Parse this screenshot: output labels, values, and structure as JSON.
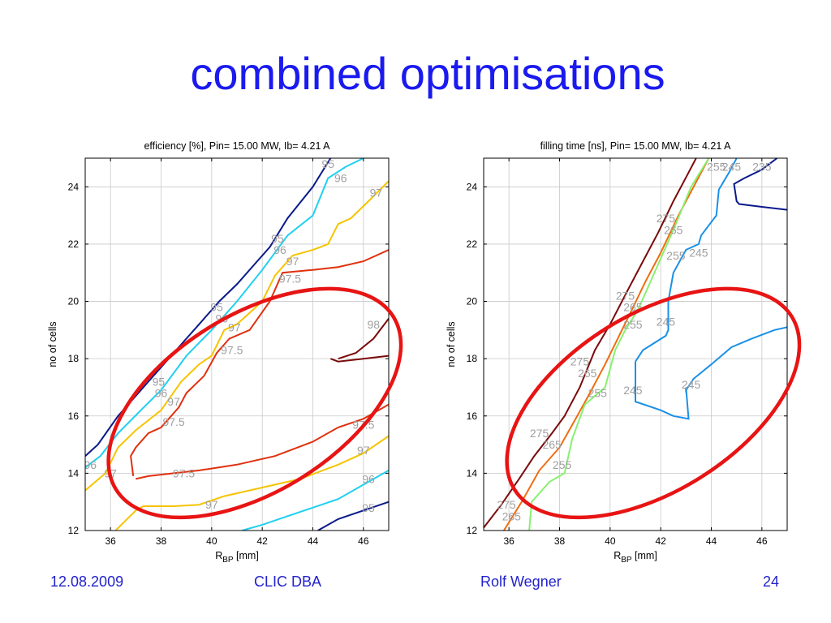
{
  "slide": {
    "title": "combined optimisations",
    "footer": {
      "date": "12.08.2009",
      "event": "CLIC DBA",
      "author": "Rolf Wegner",
      "page": "24"
    }
  },
  "colors": {
    "title": "#1a1af0",
    "footer": "#2222cc",
    "highlight": "#e81414",
    "contour_95": "#0a1a8a",
    "contour_96": "#1fd0f0",
    "contour_97": "#f5c400",
    "contour_97_5": "#e0300e",
    "contour_98": "#7a0a0a",
    "contour_275": "#7a0a0a",
    "contour_265": "#f06c10",
    "contour_255": "#88f070",
    "contour_245": "#1a90e8",
    "contour_235": "#0a1a8a",
    "label": "#a0a0a0"
  },
  "chart_data": [
    {
      "type": "contour",
      "title": "efficiency [%],  Pin= 15.00 MW,  Ib= 4.21 A",
      "xlabel": "R",
      "xlabel_sub": "BP",
      "xlabel_unit": " [mm]",
      "ylabel": "no of cells",
      "xlim": [
        35,
        47
      ],
      "ylim": [
        12,
        25
      ],
      "xticks": [
        36,
        38,
        40,
        42,
        44,
        46
      ],
      "yticks": [
        12,
        14,
        16,
        18,
        20,
        22,
        24
      ],
      "grid": true,
      "contours": [
        {
          "level": "95",
          "color": "#0a1a8a",
          "points": [
            [
              35,
              14.6
            ],
            [
              35.5,
              15
            ],
            [
              36.3,
              16
            ],
            [
              37,
              16.7
            ],
            [
              37.5,
              17.2
            ],
            [
              38.3,
              18
            ],
            [
              38.9,
              18.6
            ],
            [
              39.5,
              19.2
            ],
            [
              40.3,
              20
            ],
            [
              41,
              20.6
            ],
            [
              41.7,
              21.3
            ],
            [
              42.3,
              21.9
            ],
            [
              43,
              22.9
            ],
            [
              44,
              24
            ],
            [
              44.7,
              25
            ]
          ]
        },
        {
          "level": "95",
          "color": "#0a1a8a",
          "points": [
            [
              44.2,
              12
            ],
            [
              45,
              12.4
            ],
            [
              46,
              12.7
            ],
            [
              47,
              13
            ]
          ]
        },
        {
          "level": "96",
          "color": "#1fd0f0",
          "points": [
            [
              35,
              14.2
            ],
            [
              35.6,
              14.6
            ],
            [
              36.3,
              15.4
            ],
            [
              37.2,
              16.2
            ],
            [
              38,
              16.9
            ],
            [
              39,
              18.1
            ],
            [
              40,
              19
            ],
            [
              41,
              20
            ],
            [
              42,
              21.1
            ],
            [
              43,
              22.3
            ],
            [
              44,
              23
            ],
            [
              44.6,
              24.3
            ],
            [
              45.3,
              24.7
            ],
            [
              46,
              25
            ]
          ]
        },
        {
          "level": "96",
          "color": "#1fd0f0",
          "points": [
            [
              41.2,
              12
            ],
            [
              42,
              12.2
            ],
            [
              43,
              12.5
            ],
            [
              44,
              12.8
            ],
            [
              45,
              13.1
            ],
            [
              46,
              13.6
            ],
            [
              47,
              14.1
            ]
          ]
        },
        {
          "level": "97",
          "color": "#f5c400",
          "points": [
            [
              35,
              13.4
            ],
            [
              35.8,
              14
            ],
            [
              36.3,
              14.9
            ],
            [
              37,
              15.5
            ],
            [
              38,
              16.2
            ],
            [
              38.8,
              17.2
            ],
            [
              39.5,
              17.8
            ],
            [
              40,
              18.1
            ],
            [
              40.5,
              19
            ],
            [
              41,
              19.2
            ],
            [
              42,
              20
            ],
            [
              42.5,
              20.9
            ],
            [
              43.2,
              21.6
            ],
            [
              44,
              21.8
            ],
            [
              44.6,
              22
            ],
            [
              45,
              22.7
            ],
            [
              45.5,
              22.9
            ],
            [
              46.2,
              23.5
            ],
            [
              47,
              24.2
            ]
          ]
        },
        {
          "level": "97",
          "color": "#f5c400",
          "points": [
            [
              36.2,
              12
            ],
            [
              37,
              12.7
            ],
            [
              37.3,
              12.85
            ],
            [
              38.5,
              12.85
            ],
            [
              39.5,
              12.9
            ],
            [
              40.5,
              13.2
            ],
            [
              42,
              13.5
            ],
            [
              43.5,
              13.8
            ],
            [
              45,
              14.3
            ],
            [
              46,
              14.7
            ],
            [
              47,
              15.3
            ]
          ]
        },
        {
          "level": "97.5",
          "color": "#e0300e",
          "points": [
            [
              36.9,
              13.9
            ],
            [
              36.8,
              14.6
            ],
            [
              37,
              14.9
            ],
            [
              37.5,
              15.4
            ],
            [
              38,
              15.6
            ],
            [
              38.7,
              16.3
            ],
            [
              39,
              16.8
            ],
            [
              39.7,
              17.4
            ],
            [
              40.2,
              18.2
            ],
            [
              40.7,
              18.7
            ],
            [
              41.5,
              19
            ],
            [
              42.3,
              20
            ],
            [
              42.8,
              21
            ],
            [
              44,
              21.1
            ],
            [
              45,
              21.2
            ],
            [
              46,
              21.4
            ],
            [
              47,
              21.8
            ]
          ]
        },
        {
          "level": "97.5",
          "color": "#e0300e",
          "points": [
            [
              37,
              13.8
            ],
            [
              37.5,
              13.9
            ],
            [
              38.5,
              14
            ],
            [
              39.5,
              14.1
            ],
            [
              41,
              14.3
            ],
            [
              42.5,
              14.6
            ],
            [
              44,
              15.1
            ],
            [
              45,
              15.6
            ],
            [
              46,
              15.9
            ],
            [
              47,
              16.4
            ]
          ]
        },
        {
          "level": "98",
          "color": "#7a0a0a",
          "points": [
            [
              47,
              19.4
            ],
            [
              46.4,
              18.7
            ],
            [
              45.7,
              18.2
            ],
            [
              45,
              18
            ]
          ]
        },
        {
          "level": "98",
          "color": "#7a0a0a",
          "points": [
            [
              44.7,
              18
            ],
            [
              45,
              17.9
            ],
            [
              46,
              18
            ],
            [
              47,
              18.1
            ]
          ]
        }
      ],
      "labels": [
        {
          "text": "95",
          "x": 44.6,
          "y": 24.8
        },
        {
          "text": "96",
          "x": 45.1,
          "y": 24.3
        },
        {
          "text": "97",
          "x": 46.5,
          "y": 23.8
        },
        {
          "text": "95",
          "x": 42.6,
          "y": 22.2
        },
        {
          "text": "96",
          "x": 42.7,
          "y": 21.8
        },
        {
          "text": "97",
          "x": 43.2,
          "y": 21.4
        },
        {
          "text": "97.5",
          "x": 43.1,
          "y": 20.8
        },
        {
          "text": "95",
          "x": 40.2,
          "y": 19.8
        },
        {
          "text": "96",
          "x": 40.4,
          "y": 19.4
        },
        {
          "text": "97",
          "x": 40.9,
          "y": 19.1
        },
        {
          "text": "97.5",
          "x": 40.8,
          "y": 18.3
        },
        {
          "text": "98",
          "x": 46.4,
          "y": 19.2
        },
        {
          "text": "95",
          "x": 37.9,
          "y": 17.2
        },
        {
          "text": "96",
          "x": 38,
          "y": 16.8
        },
        {
          "text": "97",
          "x": 38.5,
          "y": 16.5
        },
        {
          "text": "97.5",
          "x": 38.5,
          "y": 15.8
        },
        {
          "text": "96",
          "x": 35.2,
          "y": 14.3
        },
        {
          "text": "97",
          "x": 36,
          "y": 14
        },
        {
          "text": "97.5",
          "x": 38.9,
          "y": 14
        },
        {
          "text": "97",
          "x": 40,
          "y": 12.9
        },
        {
          "text": "97.5",
          "x": 46,
          "y": 15.7
        },
        {
          "text": "97",
          "x": 46,
          "y": 14.8
        },
        {
          "text": "96",
          "x": 46.2,
          "y": 13.8
        },
        {
          "text": "95",
          "x": 46.2,
          "y": 12.8
        }
      ],
      "highlight_ellipse": {
        "cx": 41.7,
        "cy": 16.45,
        "rx": 7.6,
        "ry": 1.1,
        "angle_deg": -32
      }
    },
    {
      "type": "contour",
      "title": "filling time [ns],  Pin= 15.00 MW,  Ib= 4.21 A",
      "xlabel": "R",
      "xlabel_sub": "BP",
      "xlabel_unit": " [mm]",
      "ylabel": "no of cells",
      "xlim": [
        35,
        47
      ],
      "ylim": [
        12,
        25
      ],
      "xticks": [
        36,
        38,
        40,
        42,
        44,
        46
      ],
      "yticks": [
        12,
        14,
        16,
        18,
        20,
        22,
        24
      ],
      "grid": true,
      "contours": [
        {
          "level": "275",
          "color": "#7a0a0a",
          "points": [
            [
              35,
              12.1
            ],
            [
              35.7,
              12.9
            ],
            [
              36.4,
              13.8
            ],
            [
              37,
              14.6
            ],
            [
              37.7,
              15.4
            ],
            [
              38.2,
              16
            ],
            [
              38.8,
              17
            ],
            [
              39.4,
              18.3
            ],
            [
              40,
              19.2
            ],
            [
              40.7,
              20.4
            ],
            [
              41.3,
              21.4
            ],
            [
              41.9,
              22.4
            ],
            [
              42.5,
              23.5
            ],
            [
              43.1,
              24.5
            ],
            [
              43.4,
              25
            ]
          ]
        },
        {
          "level": "265",
          "color": "#f06c10",
          "points": [
            [
              35.8,
              12
            ],
            [
              36.5,
              13
            ],
            [
              37.2,
              14.1
            ],
            [
              38,
              14.9
            ],
            [
              38.7,
              16
            ],
            [
              39.2,
              16.8
            ],
            [
              39.8,
              17.8
            ],
            [
              40.3,
              18.7
            ],
            [
              40.8,
              19.6
            ],
            [
              41.4,
              20.7
            ],
            [
              42,
              21.7
            ],
            [
              42.7,
              23
            ],
            [
              43.3,
              24
            ],
            [
              43.9,
              25
            ]
          ]
        },
        {
          "level": "255",
          "color": "#88f070",
          "points": [
            [
              36.8,
              12
            ],
            [
              36.9,
              13
            ],
            [
              37.6,
              13.7
            ],
            [
              38.2,
              14
            ],
            [
              38.5,
              15.2
            ],
            [
              39,
              16.4
            ],
            [
              39.8,
              17
            ],
            [
              40.2,
              18.3
            ],
            [
              40.6,
              19
            ],
            [
              41.1,
              19.7
            ],
            [
              41.5,
              20.5
            ],
            [
              42,
              21.5
            ],
            [
              42.5,
              22.5
            ],
            [
              43.2,
              24
            ],
            [
              43.9,
              25
            ]
          ]
        },
        {
          "level": "245",
          "color": "#1a90e8",
          "points": [
            [
              41,
              17.9
            ],
            [
              41.3,
              18.3
            ],
            [
              42.2,
              18.8
            ],
            [
              42.3,
              19
            ],
            [
              42.3,
              20
            ],
            [
              42.5,
              21
            ],
            [
              43,
              21.8
            ],
            [
              43.5,
              22
            ],
            [
              43.6,
              22.3
            ],
            [
              44.2,
              23
            ],
            [
              44.3,
              23.9
            ],
            [
              44.7,
              24.5
            ],
            [
              45,
              25
            ]
          ]
        },
        {
          "level": "245",
          "color": "#1a90e8",
          "points": [
            [
              41,
              17.9
            ],
            [
              41,
              16.5
            ],
            [
              42,
              16.2
            ],
            [
              42.5,
              16
            ],
            [
              43.1,
              15.9
            ],
            [
              43,
              17
            ],
            [
              43,
              16.9
            ],
            [
              43.3,
              17.3
            ],
            [
              44,
              17.8
            ],
            [
              44.8,
              18.4
            ],
            [
              45.6,
              18.7
            ],
            [
              46.5,
              19
            ],
            [
              47,
              19.1
            ]
          ]
        },
        {
          "level": "235",
          "color": "#0a1a8a",
          "points": [
            [
              46.6,
              25
            ],
            [
              46,
              24.6
            ],
            [
              45.3,
              24.3
            ],
            [
              44.9,
              24.1
            ],
            [
              45,
              23.5
            ],
            [
              45.1,
              23.4
            ],
            [
              46,
              23.3
            ],
            [
              47,
              23.2
            ]
          ]
        }
      ],
      "labels": [
        {
          "text": "255",
          "x": 44.2,
          "y": 24.7
        },
        {
          "text": "245",
          "x": 44.8,
          "y": 24.7
        },
        {
          "text": "235",
          "x": 46,
          "y": 24.7
        },
        {
          "text": "275",
          "x": 42.2,
          "y": 22.9
        },
        {
          "text": "265",
          "x": 42.5,
          "y": 22.5
        },
        {
          "text": "255",
          "x": 42.6,
          "y": 21.6
        },
        {
          "text": "245",
          "x": 43.5,
          "y": 21.7
        },
        {
          "text": "275",
          "x": 40.6,
          "y": 20.2
        },
        {
          "text": "265",
          "x": 40.9,
          "y": 19.8
        },
        {
          "text": "255",
          "x": 40.9,
          "y": 19.2
        },
        {
          "text": "245",
          "x": 42.2,
          "y": 19.3
        },
        {
          "text": "275",
          "x": 38.8,
          "y": 17.9
        },
        {
          "text": "265",
          "x": 39.1,
          "y": 17.5
        },
        {
          "text": "255",
          "x": 39.5,
          "y": 16.8
        },
        {
          "text": "245",
          "x": 40.9,
          "y": 16.9
        },
        {
          "text": "245",
          "x": 43.2,
          "y": 17.1
        },
        {
          "text": "275",
          "x": 37.2,
          "y": 15.4
        },
        {
          "text": "265",
          "x": 37.7,
          "y": 15
        },
        {
          "text": "255",
          "x": 38.1,
          "y": 14.3
        },
        {
          "text": "275",
          "x": 35.9,
          "y": 12.9
        },
        {
          "text": "265",
          "x": 36.1,
          "y": 12.5
        }
      ],
      "highlight_ellipse": {
        "cx": 41.7,
        "cy": 16.45,
        "rx": 7.6,
        "ry": 1.1,
        "angle_deg": -32
      }
    }
  ]
}
